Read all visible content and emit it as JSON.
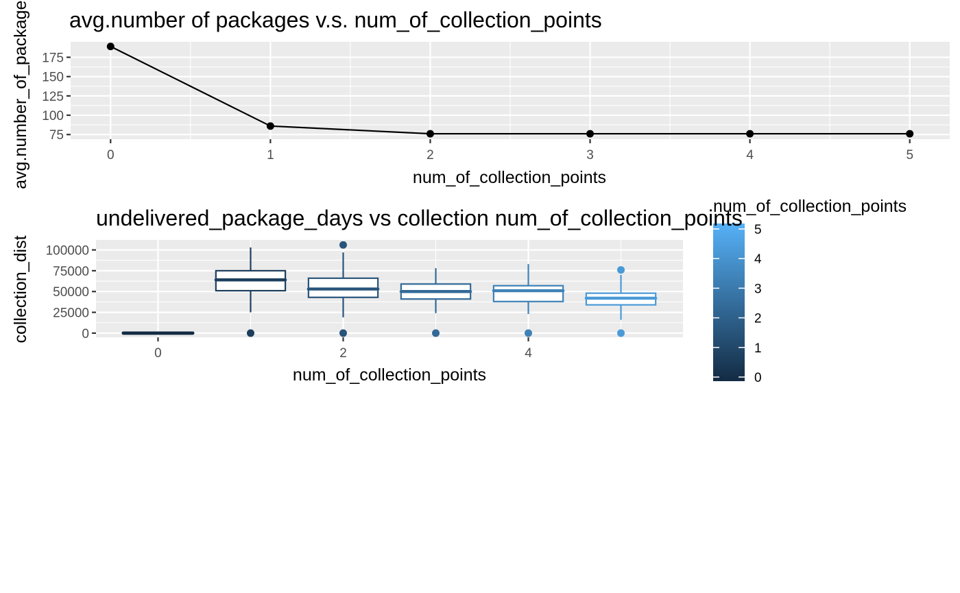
{
  "chart_data": [
    {
      "type": "line",
      "title": "avg.number of packages v.s. num_of_collection_points",
      "xlabel": "num_of_collection_points",
      "ylabel": "avg.number_of_packages",
      "x": [
        0,
        1,
        2,
        3,
        4,
        5
      ],
      "y": [
        189,
        86,
        76,
        76,
        76,
        76
      ],
      "xlim": [
        -0.25,
        5.25
      ],
      "ylim": [
        69,
        195
      ],
      "x_ticks": [
        "0",
        "1",
        "2",
        "3",
        "4",
        "5"
      ],
      "y_ticks": [
        "75",
        "100",
        "125",
        "150",
        "175"
      ],
      "point_color": "#000000",
      "line_color": "#000000",
      "grid": true
    },
    {
      "type": "box",
      "title": "undelivered_package_days vs collection num_of_collection_points",
      "xlabel": "num_of_collection_points",
      "ylabel": "collection_dist",
      "xlim": [
        -0.67,
        5.67
      ],
      "ylim": [
        -5000,
        112000
      ],
      "x_ticks": [
        "0",
        "2",
        "4"
      ],
      "y_ticks": [
        "0",
        "25000",
        "50000",
        "75000",
        "100000"
      ],
      "boxes": [
        {
          "x": 0,
          "q1": 0,
          "median": 0,
          "q3": 0,
          "whisker_low": 0,
          "whisker_high": 0,
          "outliers": [],
          "color": "#132b43"
        },
        {
          "x": 1,
          "q1": 51000,
          "median": 64000,
          "q3": 75000,
          "whisker_low": 25000,
          "whisker_high": 103000,
          "outliers": [
            0
          ],
          "color": "#1d3f5e"
        },
        {
          "x": 2,
          "q1": 43000,
          "median": 53000,
          "q3": 66000,
          "whisker_low": 19000,
          "whisker_high": 97000,
          "outliers": [
            0,
            106000
          ],
          "color": "#28547a"
        },
        {
          "x": 3,
          "q1": 41000,
          "median": 50000,
          "q3": 59000,
          "whisker_low": 24000,
          "whisker_high": 78000,
          "outliers": [
            0
          ],
          "color": "#336a98"
        },
        {
          "x": 4,
          "q1": 38000,
          "median": 51000,
          "q3": 57000,
          "whisker_low": 23000,
          "whisker_high": 83000,
          "outliers": [
            0
          ],
          "color": "#3f82b7"
        },
        {
          "x": 5,
          "q1": 34000,
          "median": 42000,
          "q3": 48000,
          "whisker_low": 16000,
          "whisker_high": 70000,
          "outliers": [
            0,
            76000
          ],
          "color": "#4a9ad7"
        }
      ],
      "legend": {
        "title": "num_of_collection_points",
        "type": "colorbar",
        "range": [
          0,
          5
        ],
        "labels": [
          "0",
          "1",
          "2",
          "3",
          "4",
          "5"
        ],
        "color_low": "#132b43",
        "color_high": "#56b1f7"
      },
      "grid": true
    }
  ]
}
